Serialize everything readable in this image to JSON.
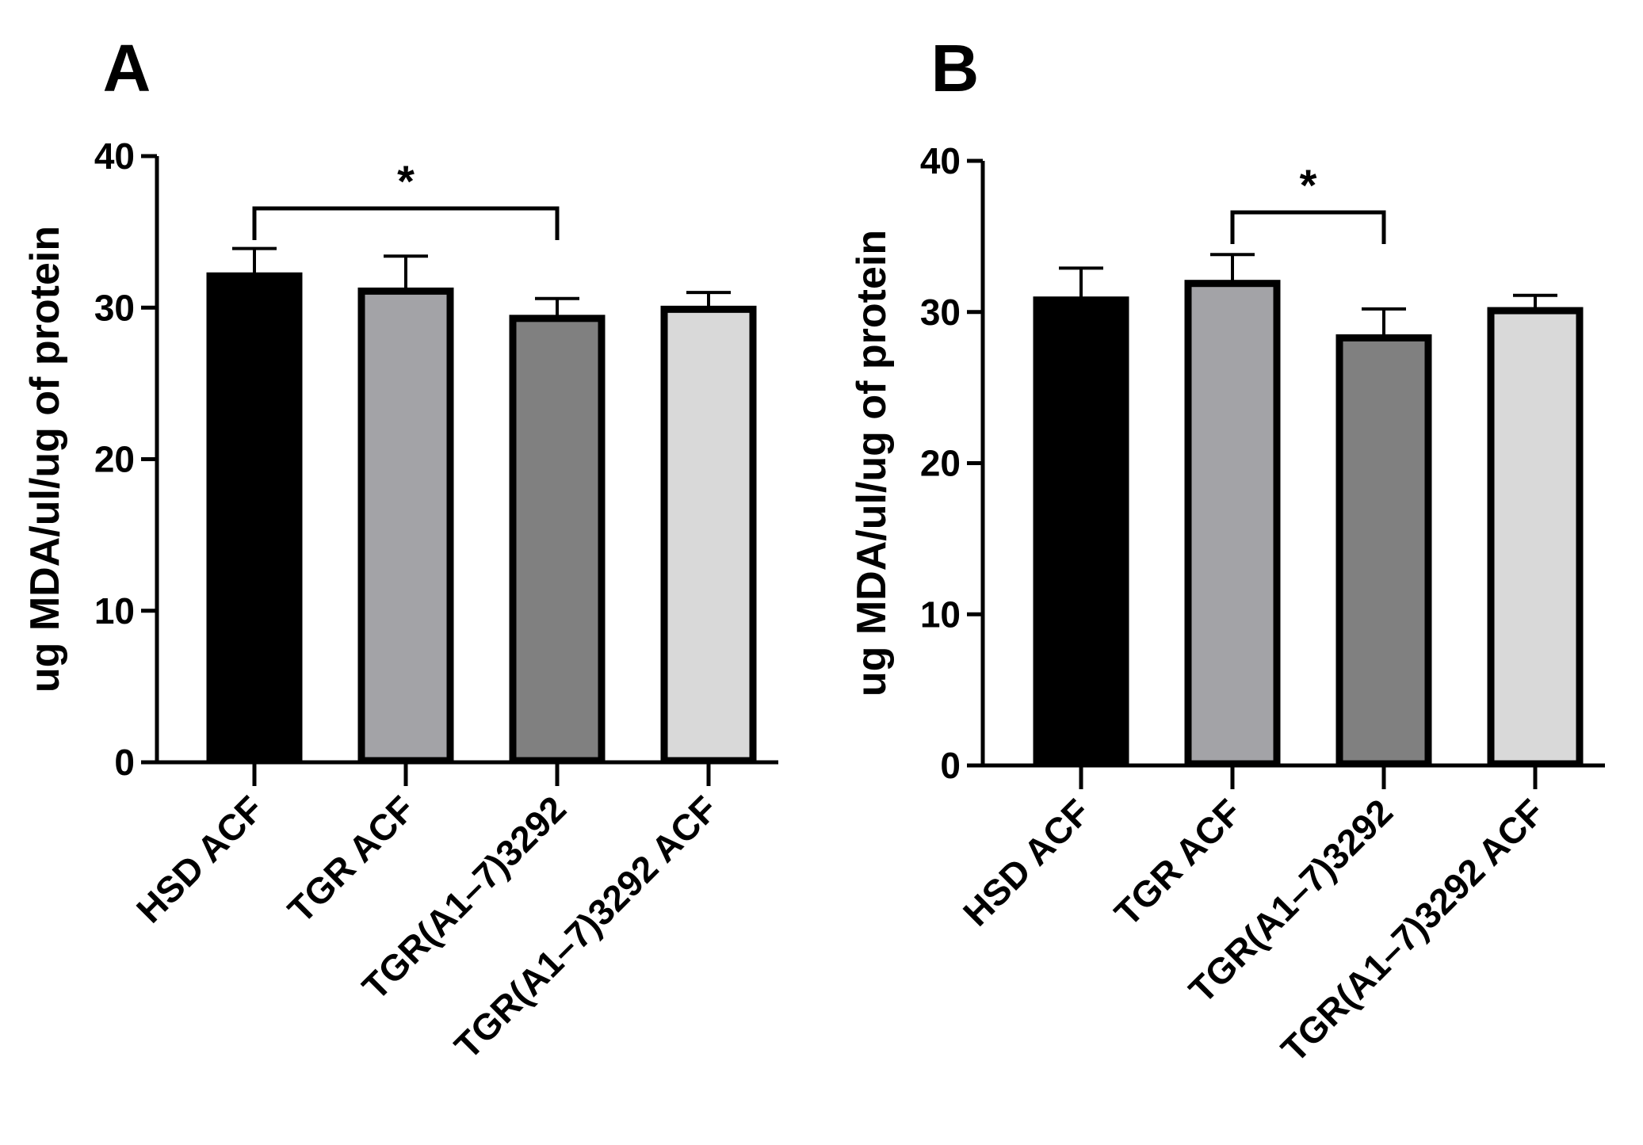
{
  "chart_data": [
    {
      "type": "bar",
      "panel": "A",
      "ylabel": "ug MDA/ul/ug of protein",
      "ylim": [
        0,
        40
      ],
      "yticks": [
        "0",
        "10",
        "20",
        "30",
        "40"
      ],
      "categories": [
        "HSD ACF",
        "TGR ACF",
        "TGR(A1–7)3292",
        "TGR(A1–7)3292 ACF"
      ],
      "values": [
        32.3,
        31.3,
        29.5,
        30.1
      ],
      "errors": [
        1.6,
        2.1,
        1.1,
        0.9
      ],
      "colors": [
        "#000000",
        "#a3a3a7",
        "#808080",
        "#d9d9d9"
      ],
      "significance": [
        {
          "from": 0,
          "to": 2,
          "label": "*"
        }
      ]
    },
    {
      "type": "bar",
      "panel": "B",
      "ylabel": "ug MDA/ul/ug of protein",
      "ylim": [
        0,
        40
      ],
      "yticks": [
        "0",
        "10",
        "20",
        "30",
        "40"
      ],
      "categories": [
        "HSD ACF",
        "TGR ACF",
        "TGR(A1–7)3292",
        "TGR(A1–7)3292 ACF"
      ],
      "values": [
        31.0,
        32.1,
        28.5,
        30.3
      ],
      "errors": [
        1.9,
        1.7,
        1.7,
        0.8
      ],
      "colors": [
        "#000000",
        "#a3a3a7",
        "#808080",
        "#d9d9d9"
      ],
      "significance": [
        {
          "from": 1,
          "to": 2,
          "label": "*"
        }
      ]
    }
  ]
}
